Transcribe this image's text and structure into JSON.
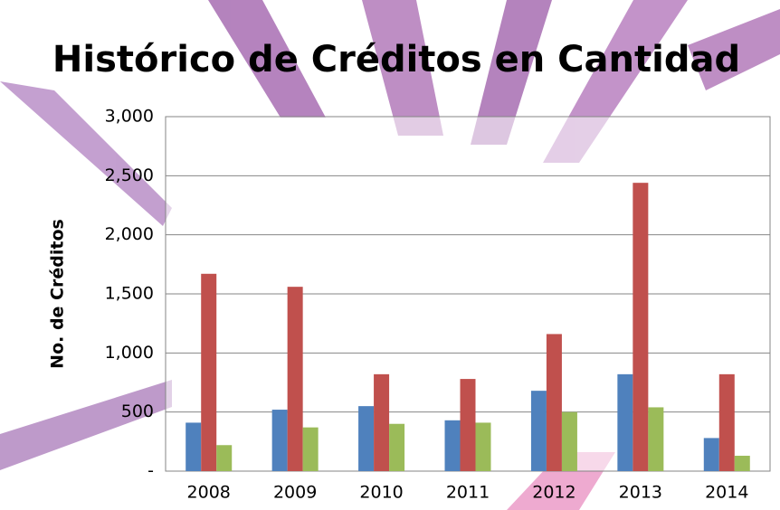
{
  "chart_data": {
    "type": "bar",
    "title": "Histórico de Créditos en Cantidad",
    "y_label": "No. de Créditos",
    "categories": [
      "2008",
      "2009",
      "2010",
      "2011",
      "2012",
      "2013",
      "2014"
    ],
    "series": [
      {
        "color": "#4f81bd",
        "values": [
          410,
          520,
          550,
          430,
          680,
          820,
          280
        ]
      },
      {
        "color": "#c0504d",
        "values": [
          1670,
          1560,
          820,
          780,
          1160,
          2440,
          820
        ]
      },
      {
        "color": "#9bbb59",
        "values": [
          220,
          370,
          400,
          410,
          500,
          540,
          130
        ]
      }
    ],
    "ylim": [
      0,
      3000
    ],
    "yticks": [
      {
        "value": 0,
        "label": "-"
      },
      500,
      {
        "value": 1000,
        "label": "1,000"
      },
      {
        "value": 1500,
        "label": "1,500"
      },
      {
        "value": 2000,
        "label": "2,000"
      },
      {
        "value": 2500,
        "label": "2,500"
      },
      {
        "value": 3000,
        "label": "3,000"
      }
    ],
    "grid": true
  }
}
